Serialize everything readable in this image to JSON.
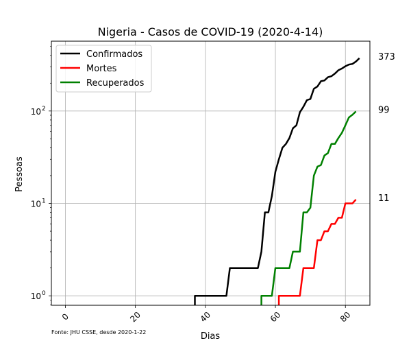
{
  "chart_data": {
    "type": "line",
    "title": "Nigeria - Casos de COVID-19 (2020-4-14)",
    "xlabel": "Dias",
    "ylabel": "Pessoas",
    "yscale": "log",
    "xlim": [
      -4,
      87
    ],
    "ylim": [
      0.79,
      570
    ],
    "xticks": [
      0,
      20,
      40,
      60,
      80
    ],
    "xtick_labels": [
      "0",
      "20",
      "40",
      "60",
      "80"
    ],
    "yticks": [
      1,
      10,
      100
    ],
    "ytick_base": "10",
    "ytick_exponents": [
      "0",
      "1",
      "2"
    ],
    "grid": true,
    "legend_position": "top-left",
    "source_note": "Fonte: JHU CSSE, desde 2020-1-22",
    "series": [
      {
        "name": "Confirmados",
        "color": "#000000",
        "end_label": "373",
        "points": [
          [
            37,
            0.5
          ],
          [
            37,
            1
          ],
          [
            46,
            1
          ],
          [
            47,
            2
          ],
          [
            55,
            2
          ],
          [
            56,
            3
          ],
          [
            57,
            8
          ],
          [
            58,
            8
          ],
          [
            59,
            12
          ],
          [
            60,
            22
          ],
          [
            61,
            30
          ],
          [
            62,
            40
          ],
          [
            63,
            44
          ],
          [
            64,
            51
          ],
          [
            65,
            65
          ],
          [
            66,
            70
          ],
          [
            67,
            97
          ],
          [
            68,
            111
          ],
          [
            69,
            131
          ],
          [
            70,
            135
          ],
          [
            71,
            174
          ],
          [
            72,
            184
          ],
          [
            73,
            210
          ],
          [
            74,
            214
          ],
          [
            75,
            232
          ],
          [
            76,
            238
          ],
          [
            77,
            254
          ],
          [
            78,
            276
          ],
          [
            79,
            288
          ],
          [
            80,
            305
          ],
          [
            81,
            318
          ],
          [
            82,
            323
          ],
          [
            83,
            343
          ],
          [
            84,
            373
          ]
        ]
      },
      {
        "name": "Mortes",
        "color": "#ff0000",
        "end_label": "11",
        "points": [
          [
            61,
            0.5
          ],
          [
            61,
            1
          ],
          [
            67,
            1
          ],
          [
            68,
            2
          ],
          [
            71,
            2
          ],
          [
            72,
            4
          ],
          [
            73,
            4
          ],
          [
            74,
            5
          ],
          [
            75,
            5
          ],
          [
            76,
            6
          ],
          [
            77,
            6
          ],
          [
            78,
            7
          ],
          [
            79,
            7
          ],
          [
            80,
            10
          ],
          [
            81,
            10
          ],
          [
            82,
            10
          ],
          [
            83,
            11
          ]
        ]
      },
      {
        "name": "Recuperados",
        "color": "#008000",
        "end_label": "99",
        "points": [
          [
            56,
            0.5
          ],
          [
            56,
            1
          ],
          [
            59,
            1
          ],
          [
            60,
            2
          ],
          [
            64,
            2
          ],
          [
            65,
            3
          ],
          [
            67,
            3
          ],
          [
            68,
            8
          ],
          [
            69,
            8
          ],
          [
            70,
            9
          ],
          [
            71,
            20
          ],
          [
            72,
            25
          ],
          [
            73,
            26
          ],
          [
            74,
            33
          ],
          [
            75,
            35
          ],
          [
            76,
            44
          ],
          [
            77,
            44
          ],
          [
            78,
            51
          ],
          [
            79,
            58
          ],
          [
            80,
            70
          ],
          [
            81,
            85
          ],
          [
            82,
            91
          ],
          [
            83,
            99
          ]
        ]
      }
    ]
  }
}
